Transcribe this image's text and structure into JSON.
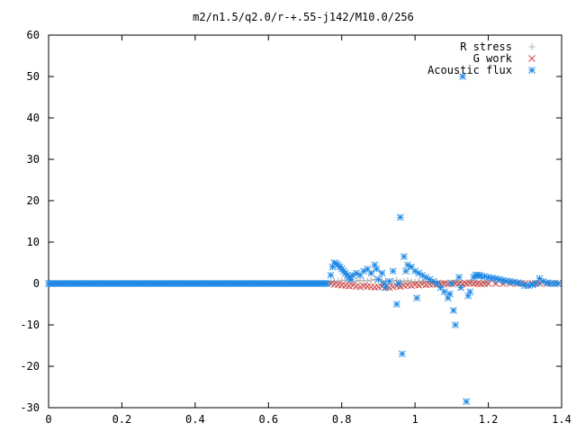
{
  "chart_data": {
    "type": "scatter",
    "title": "m2/n1.5/q2.0/r-+.55-j142/M10.0/256",
    "xlabel": "",
    "ylabel": "",
    "xlim": [
      0,
      1.4
    ],
    "ylim": [
      -30,
      60
    ],
    "x_ticks": [
      "0",
      "0.2",
      "0.4",
      "0.6",
      "0.8",
      "1",
      "1.2",
      "1.4"
    ],
    "y_ticks": [
      "-30",
      "-20",
      "-10",
      "0",
      "10",
      "20",
      "30",
      "40",
      "50",
      "60"
    ],
    "grid": false,
    "legend_position": "top-right",
    "series": [
      {
        "name": "R stress",
        "marker": "+",
        "color": "#b0b0b0",
        "x": [
          0.77,
          0.78,
          0.79,
          0.8,
          0.81,
          0.82,
          0.83,
          0.84,
          0.85,
          0.86,
          0.87,
          0.88,
          0.89,
          0.9,
          0.91,
          0.92,
          0.93,
          0.94,
          0.95,
          0.96,
          0.97,
          0.98,
          0.99,
          1.0,
          1.01,
          1.02,
          1.03,
          1.04,
          1.05,
          1.06,
          1.07,
          1.08,
          1.09,
          1.1,
          1.11,
          1.12,
          1.13,
          1.14,
          1.15,
          1.16,
          1.17,
          1.18,
          1.19,
          1.2,
          1.22,
          1.24,
          1.26,
          1.28,
          1.3,
          1.32,
          1.34,
          1.36,
          1.38,
          1.39
        ],
        "y": [
          0.3,
          0.5,
          0.6,
          0.7,
          0.8,
          0.6,
          0.5,
          0.6,
          0.8,
          0.7,
          0.6,
          0.8,
          1.0,
          0.9,
          0.7,
          0.6,
          0.5,
          0.6,
          0.8,
          0.4,
          0.6,
          0.7,
          0.5,
          0.4,
          0.5,
          0.6,
          0.4,
          0.5,
          0.3,
          0.4,
          0.2,
          0.1,
          0.2,
          0.1,
          0.3,
          0.2,
          0.1,
          0.2,
          0.3,
          0.2,
          0.1,
          0.2,
          0.1,
          0.2,
          0.1,
          0.1,
          0.1,
          0.1,
          0.1,
          0.1,
          0.1,
          0.1,
          0.1,
          0.1
        ]
      },
      {
        "name": "G work",
        "marker": "x",
        "color": "#d04040",
        "x": [
          0.77,
          0.78,
          0.79,
          0.8,
          0.81,
          0.82,
          0.83,
          0.84,
          0.85,
          0.86,
          0.87,
          0.88,
          0.89,
          0.9,
          0.91,
          0.92,
          0.93,
          0.94,
          0.95,
          0.96,
          0.97,
          0.98,
          0.99,
          1.0,
          1.01,
          1.02,
          1.03,
          1.04,
          1.05,
          1.06,
          1.07,
          1.08,
          1.09,
          1.1,
          1.11,
          1.12,
          1.13,
          1.14,
          1.15,
          1.16,
          1.17,
          1.18,
          1.19,
          1.2,
          1.22,
          1.24,
          1.26,
          1.28,
          1.3,
          1.32,
          1.34,
          1.36,
          1.38,
          1.39
        ],
        "y": [
          0.0,
          -0.2,
          -0.3,
          -0.4,
          -0.5,
          -0.6,
          -0.5,
          -0.7,
          -0.8,
          -0.6,
          -0.7,
          -0.8,
          -0.9,
          -0.8,
          -0.7,
          -0.9,
          -1.0,
          -0.8,
          -0.6,
          -0.7,
          -0.5,
          -0.4,
          -0.5,
          -0.3,
          -0.4,
          -0.2,
          -0.3,
          -0.2,
          -0.1,
          -0.2,
          -0.1,
          0.0,
          -0.1,
          0.0,
          0.1,
          0.0,
          -0.1,
          0.0,
          0.1,
          0.0,
          0.0,
          -0.1,
          0.0,
          0.0,
          0.0,
          0.0,
          0.0,
          0.0,
          0.0,
          0.0,
          0.0,
          0.0,
          0.0,
          0.0
        ]
      },
      {
        "name": "Acoustic flux",
        "marker": "*",
        "color": "#1e88e5",
        "baseline_x_range": [
          0,
          0.76
        ],
        "baseline_y": 0,
        "x": [
          0.77,
          0.775,
          0.78,
          0.785,
          0.79,
          0.795,
          0.8,
          0.805,
          0.81,
          0.815,
          0.82,
          0.825,
          0.83,
          0.84,
          0.85,
          0.86,
          0.87,
          0.88,
          0.89,
          0.895,
          0.9,
          0.91,
          0.915,
          0.92,
          0.93,
          0.94,
          0.95,
          0.955,
          0.96,
          0.965,
          0.97,
          0.975,
          0.98,
          0.99,
          1.0,
          1.005,
          1.01,
          1.02,
          1.03,
          1.04,
          1.05,
          1.06,
          1.07,
          1.08,
          1.09,
          1.095,
          1.1,
          1.105,
          1.11,
          1.12,
          1.125,
          1.13,
          1.14,
          1.145,
          1.15,
          1.16,
          1.165,
          1.17,
          1.175,
          1.18,
          1.19,
          1.2,
          1.21,
          1.22,
          1.23,
          1.24,
          1.25,
          1.26,
          1.27,
          1.28,
          1.29,
          1.3,
          1.31,
          1.32,
          1.33,
          1.34,
          1.35,
          1.36,
          1.37,
          1.38,
          1.39
        ],
        "y": [
          2.0,
          4.0,
          5.0,
          4.8,
          4.5,
          4.0,
          3.5,
          3.0,
          2.5,
          2.0,
          1.5,
          1.0,
          2.0,
          2.5,
          2.0,
          3.0,
          3.5,
          2.5,
          4.5,
          3.5,
          1.0,
          2.5,
          0.0,
          -1.0,
          0.5,
          3.0,
          -5.0,
          0.0,
          16.0,
          -17.0,
          6.5,
          3.0,
          4.5,
          4.0,
          3.0,
          -3.5,
          2.5,
          2.0,
          1.5,
          1.0,
          0.5,
          0.0,
          -1.0,
          -2.0,
          -3.5,
          -2.5,
          0.0,
          -6.5,
          -10.0,
          1.5,
          -1.0,
          50.0,
          -28.5,
          -3.0,
          -2.0,
          1.5,
          2.0,
          2.0,
          2.0,
          1.8,
          1.7,
          1.5,
          1.3,
          1.2,
          1.0,
          0.8,
          0.6,
          0.5,
          0.3,
          0.2,
          0.0,
          -0.5,
          -0.5,
          -0.3,
          0.0,
          1.2,
          0.5,
          0.2,
          0.0,
          0.0,
          0.0
        ]
      }
    ]
  }
}
